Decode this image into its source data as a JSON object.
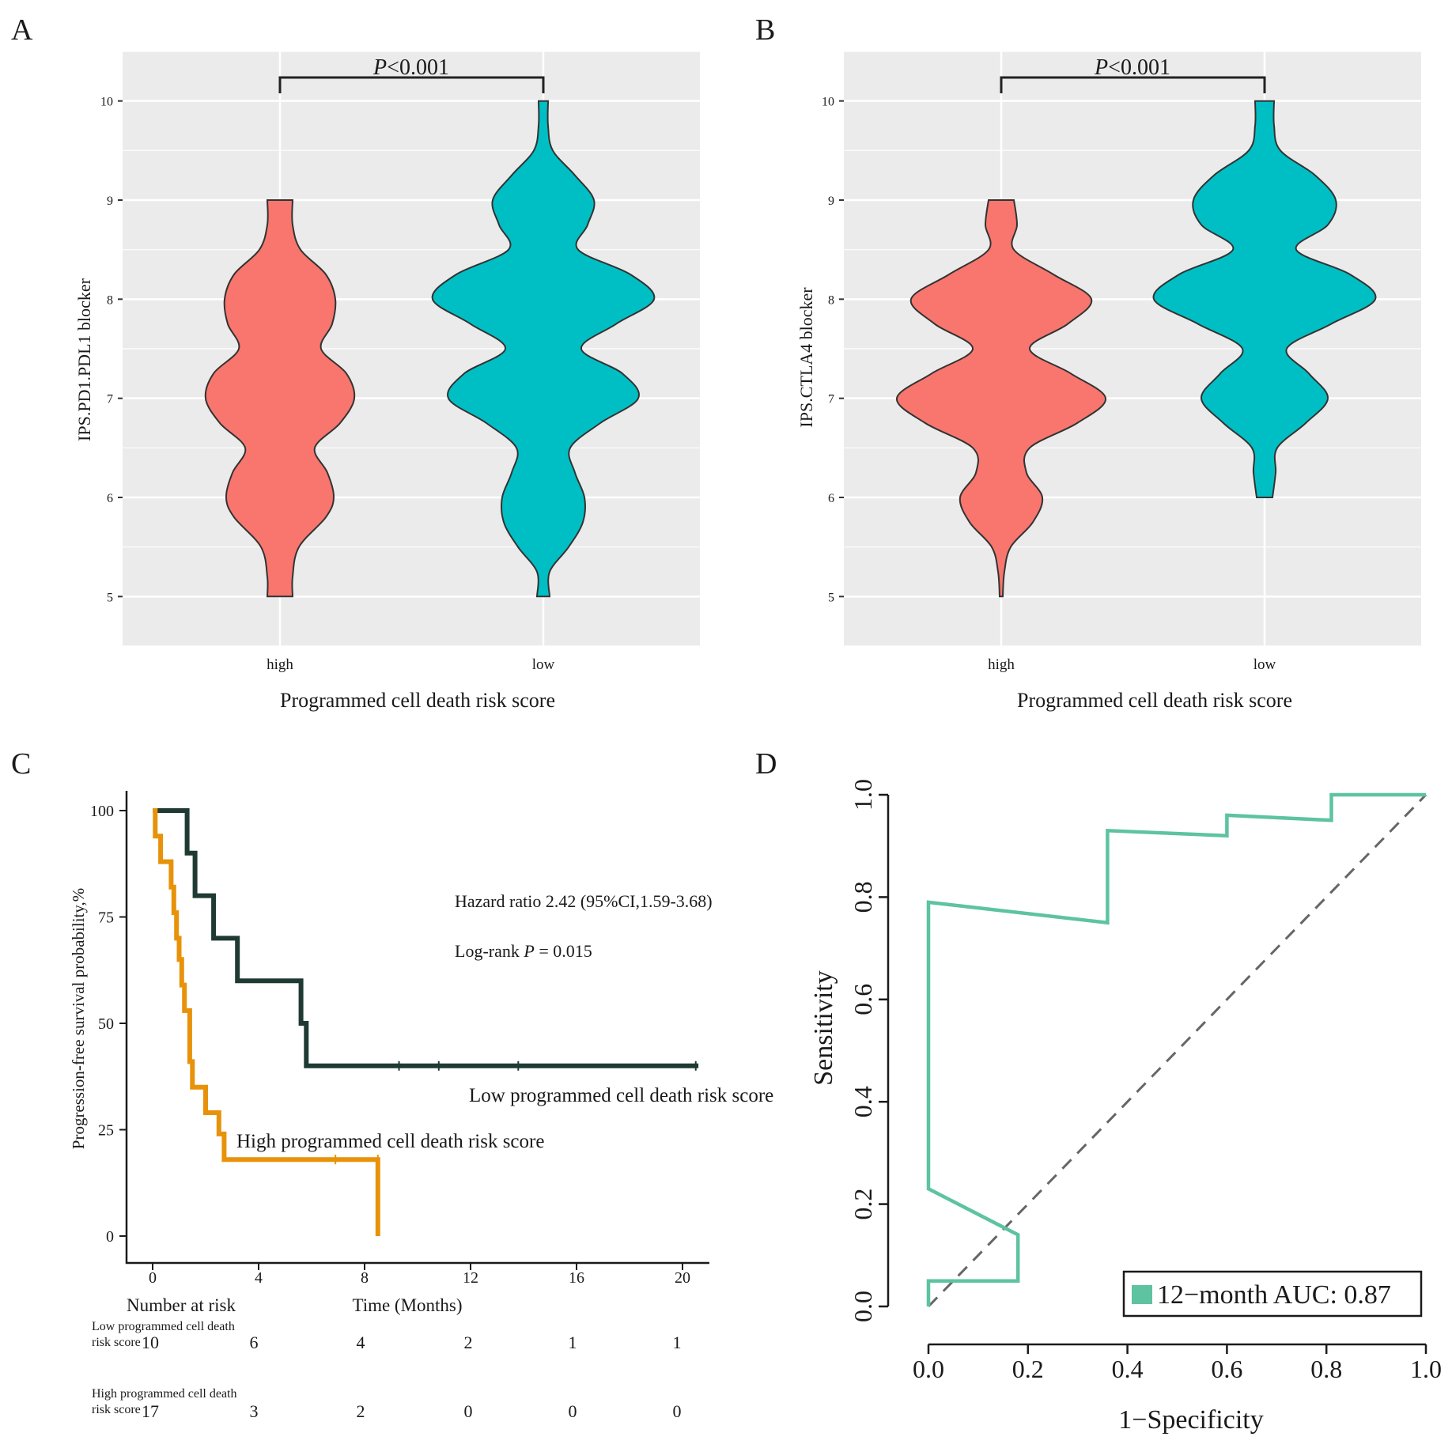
{
  "figure": {
    "panel_labels": [
      "A",
      "B",
      "C",
      "D"
    ]
  },
  "colors": {
    "high": "#F8766D",
    "low": "#00BFC4",
    "km_low": "#1F3A33",
    "km_high": "#E8920A",
    "roc": "#5DC3A0",
    "panel_bg": "#EBEBEB",
    "grid": "#FFFFFF"
  },
  "chart_data": [
    {
      "panel": "A",
      "type": "violin",
      "title": "",
      "xlabel": "Programmed cell death risk score",
      "ylabel": "IPS.PD1.PDL1 blocker",
      "categories": [
        "high",
        "low"
      ],
      "ylim": [
        4.5,
        10.5
      ],
      "yticks": [
        "5",
        "6",
        "7",
        "8",
        "9",
        "10"
      ],
      "annotation": {
        "p_italic": "P",
        "p_rest": "<0.001"
      },
      "series": [
        {
          "name": "high",
          "color": "#F8766D",
          "y": [
            5.0,
            5.2,
            5.5,
            5.8,
            6.0,
            6.25,
            6.5,
            6.75,
            7.0,
            7.25,
            7.5,
            7.75,
            8.0,
            8.25,
            8.5,
            8.75,
            9.0
          ],
          "width": [
            0.08,
            0.08,
            0.12,
            0.29,
            0.34,
            0.3,
            0.22,
            0.38,
            0.47,
            0.42,
            0.26,
            0.33,
            0.35,
            0.29,
            0.13,
            0.08,
            0.08
          ]
        },
        {
          "name": "low",
          "color": "#00BFC4",
          "y": [
            5.0,
            5.25,
            5.5,
            5.75,
            6.0,
            6.25,
            6.5,
            6.75,
            7.0,
            7.25,
            7.5,
            7.75,
            8.0,
            8.25,
            8.5,
            8.75,
            9.0,
            9.25,
            9.5,
            9.75,
            10.0
          ],
          "width": [
            0.04,
            0.04,
            0.16,
            0.25,
            0.26,
            0.2,
            0.17,
            0.36,
            0.6,
            0.5,
            0.24,
            0.46,
            0.7,
            0.55,
            0.22,
            0.28,
            0.32,
            0.2,
            0.06,
            0.03,
            0.03
          ]
        }
      ]
    },
    {
      "panel": "B",
      "type": "violin",
      "title": "",
      "xlabel": "Programmed cell death risk score",
      "ylabel": "IPS.CTLA4 blocker",
      "categories": [
        "high",
        "low"
      ],
      "ylim": [
        4.5,
        10.5
      ],
      "yticks": [
        "5",
        "6",
        "7",
        "8",
        "9",
        "10"
      ],
      "annotation": {
        "p_italic": "P",
        "p_rest": "<0.001"
      },
      "series": [
        {
          "name": "high",
          "color": "#F8766D",
          "y": [
            5.0,
            5.25,
            5.5,
            5.75,
            6.0,
            6.25,
            6.5,
            6.75,
            7.0,
            7.25,
            7.5,
            7.75,
            8.0,
            8.25,
            8.5,
            8.75,
            9.0
          ],
          "width": [
            0.01,
            0.02,
            0.06,
            0.2,
            0.26,
            0.16,
            0.18,
            0.48,
            0.66,
            0.44,
            0.18,
            0.42,
            0.57,
            0.33,
            0.08,
            0.1,
            0.08
          ]
        },
        {
          "name": "low",
          "color": "#00BFC4",
          "y": [
            6.0,
            6.25,
            6.5,
            6.75,
            7.0,
            7.25,
            7.5,
            7.75,
            8.0,
            8.25,
            8.5,
            8.75,
            9.0,
            9.25,
            9.5,
            9.75,
            10.0
          ],
          "width": [
            0.05,
            0.07,
            0.08,
            0.26,
            0.4,
            0.28,
            0.14,
            0.42,
            0.7,
            0.54,
            0.2,
            0.4,
            0.45,
            0.32,
            0.1,
            0.06,
            0.06
          ]
        }
      ]
    },
    {
      "panel": "C",
      "type": "line",
      "subtype": "kaplan-meier",
      "xlabel": "Time (Months)",
      "ylabel": "Progression-free survival probability,%",
      "xlim": [
        0,
        21
      ],
      "ylim": [
        0,
        100
      ],
      "xticks": [
        "0",
        "4",
        "8",
        "12",
        "16",
        "20"
      ],
      "yticks": [
        "0",
        "25",
        "50",
        "75",
        "100"
      ],
      "annotations": {
        "hazard": "Hazard ratio 2.42 (95%CI,1.59-3.68)",
        "logrank_prefix": "Log-rank ",
        "logrank_p": "P",
        "logrank_suffix": " =  0.015"
      },
      "series": [
        {
          "name": "Low programmed cell death risk score",
          "color": "#1F3A33",
          "x": [
            0,
            1.3,
            1.3,
            1.6,
            1.6,
            2.3,
            2.3,
            3.2,
            3.2,
            5.6,
            5.6,
            5.8,
            5.8,
            20.6
          ],
          "y": [
            100,
            100,
            90,
            90,
            80,
            80,
            70,
            70,
            60,
            60,
            50,
            50,
            40,
            40
          ],
          "censor_x": [
            9.3,
            10.8,
            13.8,
            20.5
          ],
          "censor_y": [
            40,
            40,
            40,
            40
          ]
        },
        {
          "name": "High programmed cell death risk score",
          "color": "#E8920A",
          "x": [
            0,
            0.1,
            0.1,
            0.3,
            0.3,
            0.7,
            0.7,
            0.8,
            0.8,
            0.9,
            0.9,
            1.0,
            1.0,
            1.1,
            1.1,
            1.2,
            1.2,
            1.4,
            1.4,
            1.5,
            1.5,
            2.0,
            2.0,
            2.5,
            2.5,
            2.7,
            2.7,
            8.5,
            8.5
          ],
          "y": [
            100,
            100,
            94,
            94,
            88,
            88,
            82,
            82,
            76,
            76,
            70,
            70,
            65,
            65,
            59,
            59,
            53,
            53,
            41,
            41,
            35,
            35,
            29,
            29,
            24,
            24,
            18,
            18,
            0
          ],
          "censor_x": [
            6.9,
            8.5
          ],
          "censor_y": [
            18,
            18
          ]
        }
      ],
      "risk_table": {
        "title": "Number at risk",
        "rows": [
          {
            "label1": "Low programmed cell death",
            "label2": "risk score",
            "values": [
              "10",
              "6",
              "4",
              "2",
              "1",
              "1"
            ]
          },
          {
            "label1": "High programmed cell death",
            "label2": "risk score",
            "values": [
              "17",
              "3",
              "2",
              "0",
              "0",
              "0"
            ]
          }
        ]
      }
    },
    {
      "panel": "D",
      "type": "line",
      "subtype": "roc",
      "xlabel": "1−Specificity",
      "ylabel": "Sensitivity",
      "xlim": [
        0,
        1
      ],
      "ylim": [
        0,
        1
      ],
      "xticks": [
        "0.0",
        "0.2",
        "0.4",
        "0.6",
        "0.8",
        "1.0"
      ],
      "yticks": [
        "0.0",
        "0.2",
        "0.4",
        "0.6",
        "0.8",
        "1.0"
      ],
      "legend": "12−month AUC: 0.87",
      "series": [
        {
          "name": "12-month",
          "color": "#5DC3A0",
          "x": [
            0,
            0,
            0.18,
            0.18,
            0,
            0,
            0,
            0.36,
            0.36,
            0.6,
            0.6,
            0.81,
            0.81,
            1.0
          ],
          "y": [
            0,
            0.05,
            0.05,
            0.14,
            0.23,
            0.23,
            0.79,
            0.75,
            0.93,
            0.92,
            0.96,
            0.95,
            1.0,
            1.0
          ]
        }
      ]
    }
  ]
}
